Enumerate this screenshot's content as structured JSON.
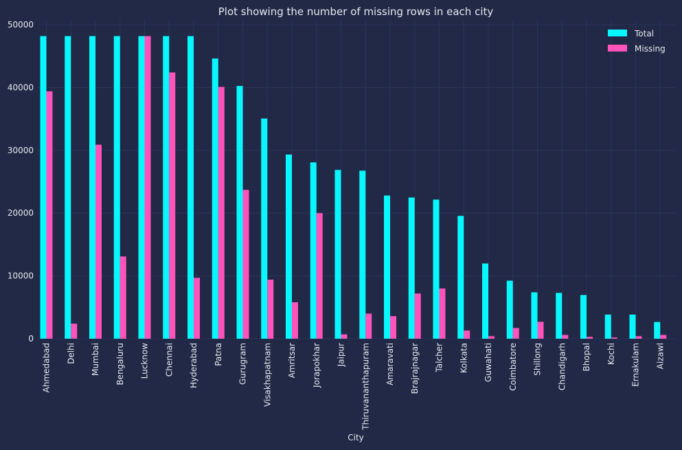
{
  "chart_data": {
    "type": "bar",
    "title": "Plot showing the number of missing rows in each city",
    "xlabel": "City",
    "ylabel": "",
    "ylim": [
      0,
      50000
    ],
    "yticks": [
      0,
      10000,
      20000,
      30000,
      40000,
      50000
    ],
    "grid": true,
    "legend_position": "top-right",
    "categories": [
      "Ahmedabad",
      "Delhi",
      "Mumbai",
      "Bengaluru",
      "Lucknow",
      "Chennai",
      "Hyderabad",
      "Patna",
      "Gurugram",
      "Visakhapatnam",
      "Amritsar",
      "Jorapokhar",
      "Jaipur",
      "Thiruvananthapuram",
      "Amaravati",
      "Brajrajnagar",
      "Talcher",
      "Kolkata",
      "Guwahati",
      "Coimbatore",
      "Shillong",
      "Chandigarh",
      "Bhopal",
      "Kochi",
      "Ernakulam",
      "Aizawl"
    ],
    "series": [
      {
        "name": "Total",
        "color": "#08f7fe",
        "values": [
          48192,
          48192,
          48192,
          48192,
          48192,
          48192,
          48192,
          44616,
          40248,
          35064,
          29328,
          28080,
          26880,
          26760,
          22800,
          22488,
          22152,
          19560,
          11976,
          9240,
          7392,
          7296,
          6960,
          3840,
          3840,
          2664
        ]
      },
      {
        "name": "Missing",
        "color": "#fe53bb",
        "values": [
          39400,
          2400,
          30900,
          13100,
          48192,
          42400,
          9700,
          40100,
          23700,
          9400,
          5800,
          20000,
          700,
          4000,
          3600,
          7200,
          8000,
          1300,
          400,
          1700,
          2700,
          600,
          300,
          200,
          400,
          600
        ]
      }
    ]
  }
}
